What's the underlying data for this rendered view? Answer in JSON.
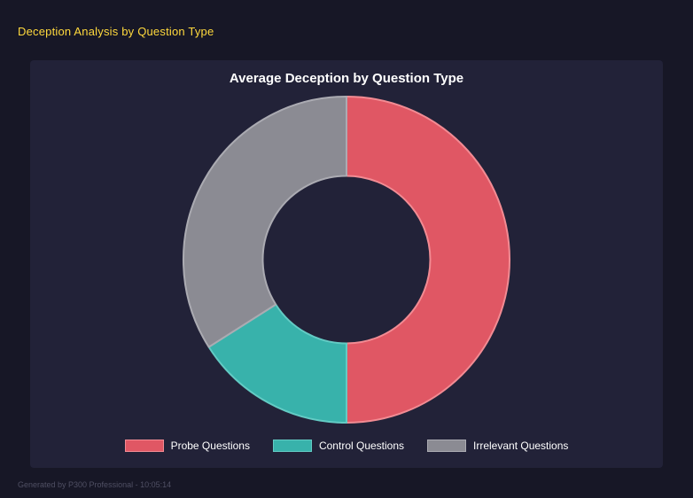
{
  "page": {
    "title": "Deception Analysis by Question Type",
    "footer": "Generated by P300 Professional - 10:05:14",
    "colors": {
      "background": "#171726",
      "panel": "#222238",
      "title_accent": "#ffd93d"
    }
  },
  "chart_data": {
    "type": "pie",
    "subtype": "doughnut",
    "title": "Average Deception by Question Type",
    "categories": [
      "Probe Questions",
      "Control Questions",
      "Irrelevant Questions"
    ],
    "values": [
      50,
      16,
      34
    ],
    "unit": "percent_share",
    "colors": [
      "#e05764",
      "#38b2ab",
      "#8b8b93"
    ],
    "border_colors": [
      "#f28b93",
      "#63cbc4",
      "#ababb2"
    ],
    "legend_position": "bottom",
    "grid": false
  }
}
